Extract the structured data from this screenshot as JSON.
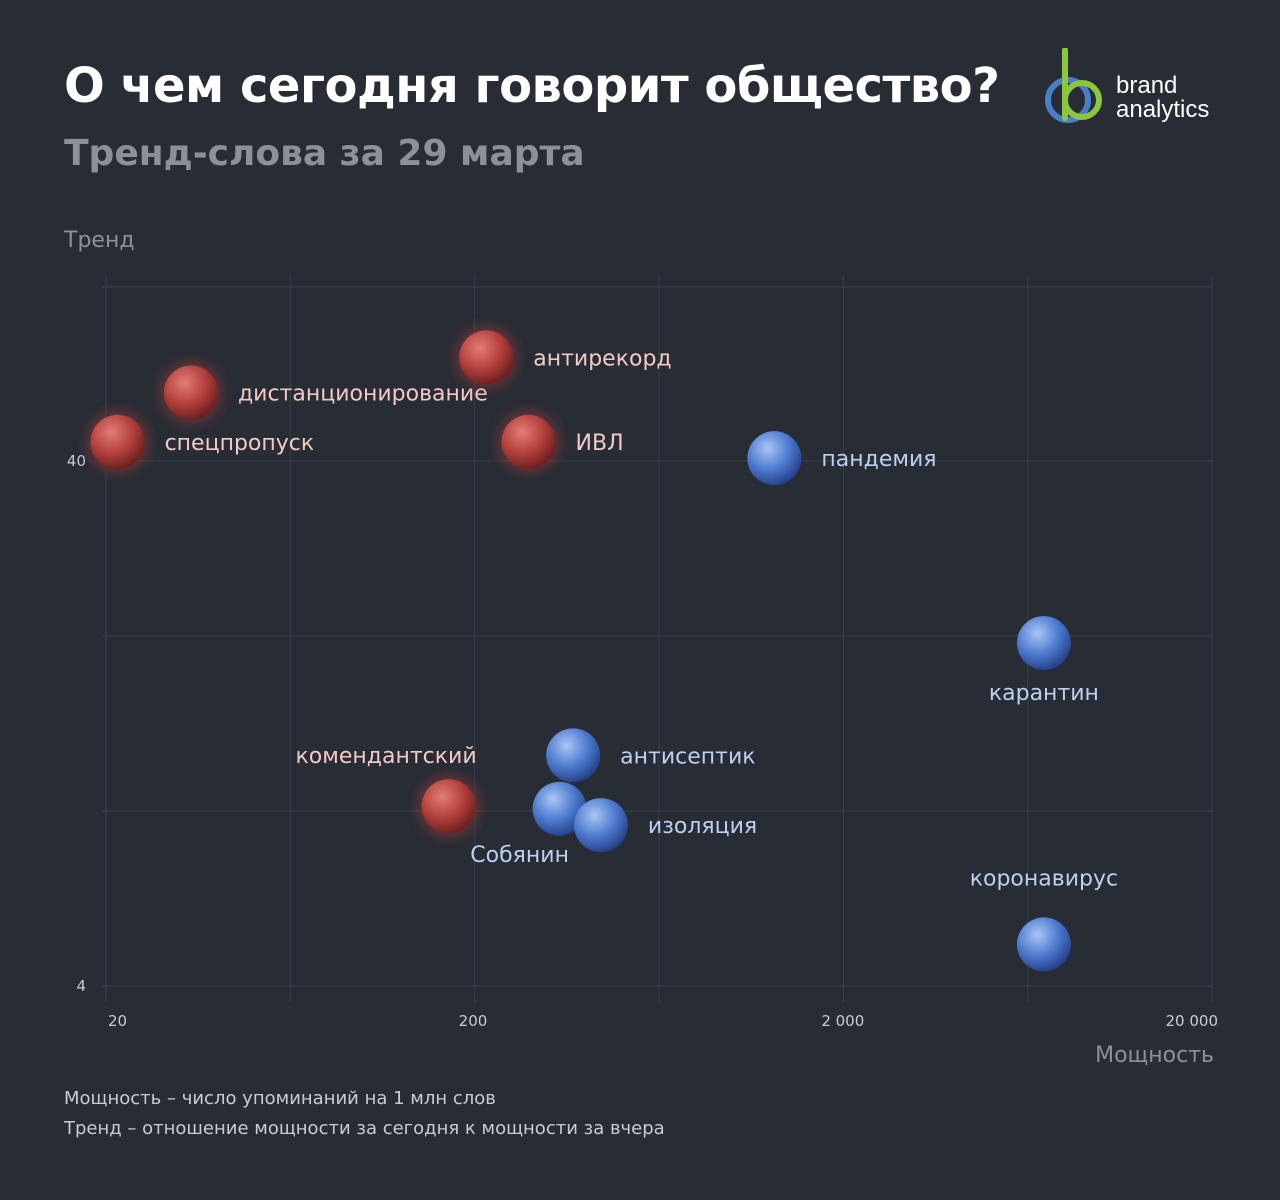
{
  "header": {
    "title": "О чем сегодня говорит общество?",
    "subtitle": "Тренд-слова за 29 марта"
  },
  "logo": {
    "line1": "brand",
    "line2": "analytics"
  },
  "colors": {
    "background": "#282c35",
    "rising": "#b5413e",
    "stable": "#4f7cd0",
    "rising_label": "#f2c9c4",
    "stable_label": "#bcd0f0",
    "logo_green": "#8cc63f",
    "logo_blue": "#4a7fc8"
  },
  "chart_data": {
    "type": "scatter",
    "title": "",
    "xlabel": "Мощность",
    "ylabel": "Тренд",
    "x_scale": "log",
    "y_scale": "log",
    "xlim": [
      20,
      20000
    ],
    "ylim": [
      4,
      120
    ],
    "grid": true,
    "x_ticks": [
      {
        "value": 20,
        "label": "20"
      },
      {
        "value": 200,
        "label": "200"
      },
      {
        "value": 2000,
        "label": "2 000"
      },
      {
        "value": 20000,
        "label": "20 000"
      }
    ],
    "y_ticks": [
      {
        "value": 4,
        "label": "4"
      },
      {
        "value": 40,
        "label": "40"
      }
    ],
    "points": [
      {
        "label": "спецпропуск",
        "x": 21.5,
        "y": 43.5,
        "group": "rising",
        "label_pos": "right"
      },
      {
        "label": "дистанционирование",
        "x": 34,
        "y": 54,
        "group": "rising",
        "label_pos": "right"
      },
      {
        "label": "антирекорд",
        "x": 215,
        "y": 63,
        "group": "rising",
        "label_pos": "right"
      },
      {
        "label": "ИВЛ",
        "x": 280,
        "y": 43.5,
        "group": "rising",
        "label_pos": "right"
      },
      {
        "label": "комендантский",
        "x": 170,
        "y": 8.8,
        "group": "rising",
        "label_pos": "above-left"
      },
      {
        "label": "пандемия",
        "x": 1300,
        "y": 40.5,
        "group": "stable",
        "label_pos": "right"
      },
      {
        "label": "карантин",
        "x": 7000,
        "y": 18,
        "group": "stable",
        "label_pos": "below"
      },
      {
        "label": "антисептик",
        "x": 370,
        "y": 11,
        "group": "stable",
        "label_pos": "right"
      },
      {
        "label": "Собянин",
        "x": 340,
        "y": 8.7,
        "group": "stable",
        "label_pos": "below-left"
      },
      {
        "label": "изоляция",
        "x": 440,
        "y": 8.1,
        "group": "stable",
        "label_pos": "right"
      },
      {
        "label": "коронавирус",
        "x": 7000,
        "y": 4.8,
        "group": "stable",
        "label_pos": "above"
      }
    ]
  },
  "notes": {
    "line1": "Мощность – число упоминаний на 1 млн слов",
    "line2": "Тренд – отношение мощности за сегодня к мощности за вчера"
  }
}
